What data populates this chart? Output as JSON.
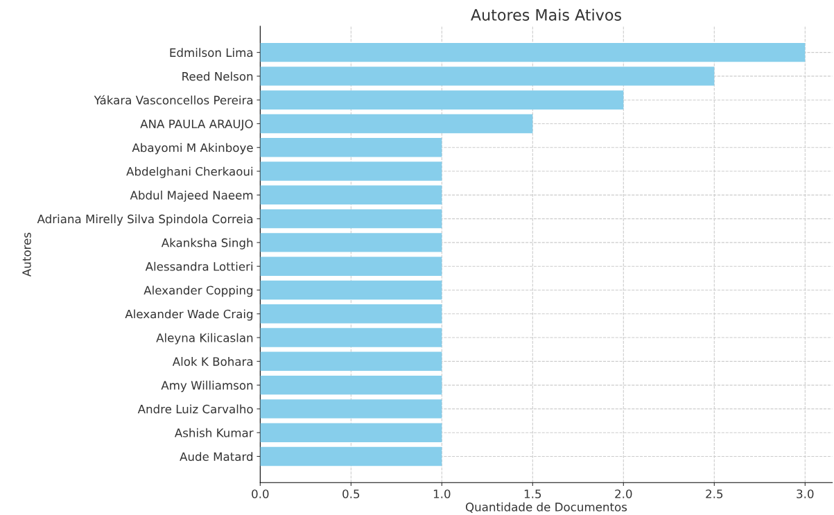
{
  "chart_data": {
    "type": "bar",
    "orientation": "horizontal",
    "title": "Autores Mais Ativos",
    "xlabel": "Quantidade de Documentos",
    "ylabel": "Autores",
    "categories": [
      "Edmilson Lima",
      "Reed Nelson",
      "Yákara Vasconcellos Pereira",
      "ANA PAULA ARAUJO",
      "Abayomi M Akinboye",
      "Abdelghani Cherkaoui",
      "Abdul Majeed Naeem",
      "Adriana Mirelly Silva Spindola Correia",
      "Akanksha Singh",
      "Alessandra Lottieri",
      "Alexander Copping",
      "Alexander Wade Craig",
      "Aleyna Kilicaslan",
      "Alok K Bohara",
      "Amy Williamson",
      "Andre Luiz Carvalho",
      "Ashish Kumar",
      "Aude Matard"
    ],
    "values": [
      3,
      2.5,
      2,
      1.5,
      1,
      1,
      1,
      1,
      1,
      1,
      1,
      1,
      1,
      1,
      1,
      1,
      1,
      1
    ],
    "color": "#87ceeb",
    "xlim": [
      0,
      3.15
    ],
    "xticks": [
      {
        "value": 0,
        "label": "0.0"
      },
      {
        "value": 0.5,
        "label": "0.5"
      },
      {
        "value": 1,
        "label": "1.0"
      },
      {
        "value": 1.5,
        "label": "1.5"
      },
      {
        "value": 2,
        "label": "2.0"
      },
      {
        "value": 2.5,
        "label": "2.5"
      },
      {
        "value": 3,
        "label": "3.0"
      }
    ],
    "grid": true
  }
}
